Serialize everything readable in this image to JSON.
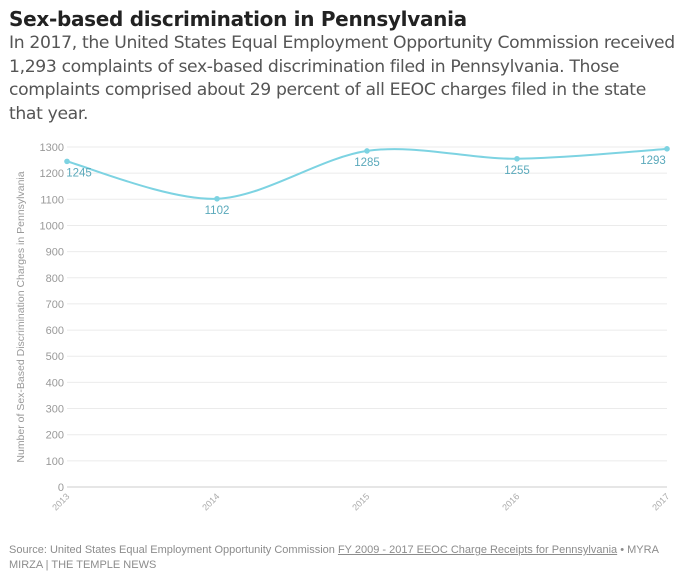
{
  "header": {
    "title": "Sex-based discrimination in Pennsylvania",
    "subtitle": "In 2017, the United States Equal Employment Opportunity Commission received 1,293 complaints of sex-based discrimination filed in Pennsylvania. Those complaints comprised about 29 percent of all EEOC charges filed in the state that year."
  },
  "footer": {
    "source_prefix": "Source: United States Equal Employment Opportunity Commission",
    "source_link": "FY 2009 - 2017 EEOC Charge Receipts for Pennsylvania",
    "credit": "• MYRA MIRZA | THE TEMPLE NEWS"
  },
  "colors": {
    "line": "#7dd3e2",
    "label": "#5aa9bb",
    "grid": "#ebebeb",
    "axis_text": "#999999"
  },
  "chart_data": {
    "type": "line",
    "x": [
      "2013",
      "2014",
      "2015",
      "2016",
      "2017"
    ],
    "series": [
      {
        "values": [
          1245,
          1102,
          1285,
          1255,
          1293
        ]
      }
    ],
    "data_labels": [
      "1245",
      "1102",
      "1285",
      "1255",
      "1293"
    ],
    "xlabel": "",
    "ylabel": "Number of Sex-Based Discrimination Charges in Pennsylvania",
    "ylim": [
      0,
      1300
    ],
    "yticks": [
      0,
      100,
      200,
      300,
      400,
      500,
      600,
      700,
      800,
      900,
      1000,
      1100,
      1200,
      1300
    ],
    "grid": true,
    "curve": "smooth"
  }
}
